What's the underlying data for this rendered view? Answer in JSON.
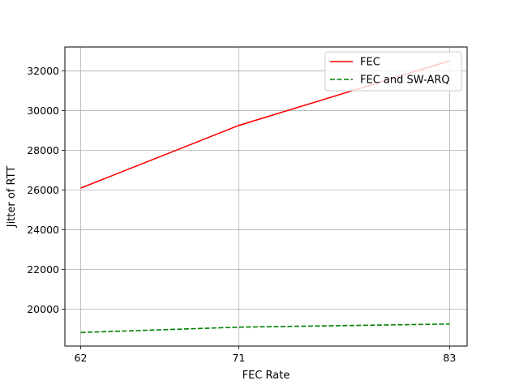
{
  "chart_data": {
    "type": "line",
    "xlabel": "FEC Rate",
    "ylabel": "Jitter of RTT",
    "x": [
      62,
      71,
      83
    ],
    "xticks": [
      62,
      71,
      83
    ],
    "xlim": [
      61.1,
      84.0
    ],
    "yticks": [
      20000,
      22000,
      24000,
      26000,
      28000,
      30000,
      32000
    ],
    "ylim": [
      18150,
      33200
    ],
    "grid": true,
    "legend_position": "top-right",
    "series": [
      {
        "name": "FEC",
        "values": [
          26100,
          29250,
          32500
        ],
        "color": "#ff0000",
        "style": "solid"
      },
      {
        "name": "FEC and SW-ARQ",
        "values": [
          18830,
          19100,
          19260
        ],
        "color": "#008000",
        "style": "dashed"
      }
    ]
  }
}
